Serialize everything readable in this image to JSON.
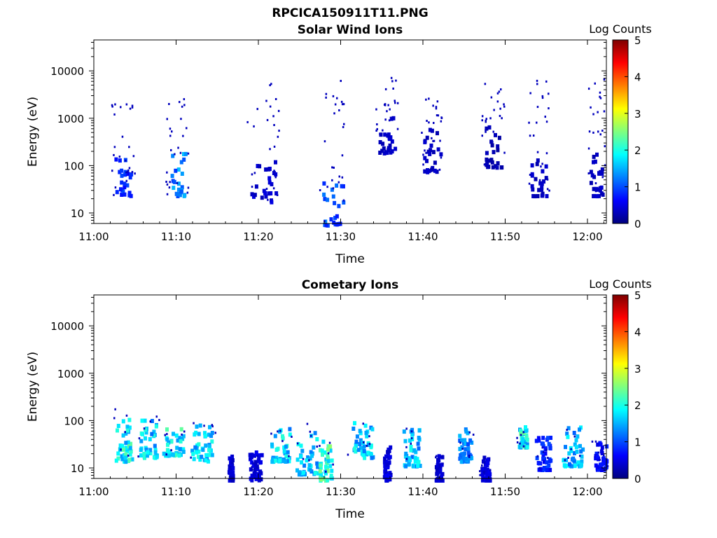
{
  "figure": {
    "main_title": "RPCICA150911T11.PNG"
  },
  "colorbar_colors": [
    "#00007f",
    "#0000ff",
    "#007fff",
    "#00ffff",
    "#7fff7f",
    "#ffff00",
    "#ff7f00",
    "#ff0000",
    "#7f0000"
  ],
  "chart_data": [
    {
      "type": "heatmap",
      "title": "Solar Wind Ions",
      "xlabel": "Time",
      "ylabel": "Energy (eV)",
      "x_range_minutes": [
        0,
        62.3
      ],
      "x_tick_values": [
        0,
        10,
        20,
        30,
        40,
        50,
        60
      ],
      "x_tick_labels": [
        "11:00",
        "11:10",
        "11:20",
        "11:30",
        "11:40",
        "11:50",
        "12:00"
      ],
      "y_scale": "log",
      "y_range": [
        6,
        45000
      ],
      "y_tick_values": [
        10,
        100,
        1000,
        10000
      ],
      "y_tick_labels": [
        "10",
        "100",
        "1000",
        "10000"
      ],
      "colorbar": {
        "label": "Log Counts",
        "range": [
          0,
          5
        ],
        "tick_labels": [
          "0",
          "1",
          "2",
          "3",
          "4",
          "5"
        ]
      },
      "bursts": [
        {
          "t": 3.5,
          "hi": 3000,
          "lo": 25,
          "w": 2.0,
          "level": 1.0
        },
        {
          "t": 10.0,
          "hi": 3000,
          "lo": 25,
          "w": 2.0,
          "level": 1.6
        },
        {
          "t": 20.5,
          "hi": 10000,
          "lo": 18,
          "w": 3.0,
          "level": 0.5
        },
        {
          "t": 29.0,
          "hi": 8000,
          "lo": 6,
          "w": 2.5,
          "level": 1.3
        },
        {
          "t": 35.5,
          "hi": 8000,
          "lo": 200,
          "w": 2.0,
          "level": 0.4
        },
        {
          "t": 41.0,
          "hi": 3000,
          "lo": 80,
          "w": 2.0,
          "level": 0.4
        },
        {
          "t": 48.5,
          "hi": 8000,
          "lo": 100,
          "w": 2.0,
          "level": 0.3
        },
        {
          "t": 54.0,
          "hi": 8000,
          "lo": 25,
          "w": 2.0,
          "level": 0.4
        },
        {
          "t": 61.0,
          "hi": 8000,
          "lo": 25,
          "w": 1.5,
          "level": 0.4
        }
      ]
    },
    {
      "type": "heatmap",
      "title": "Cometary Ions",
      "xlabel": "Time",
      "ylabel": "Energy (eV)",
      "x_range_minutes": [
        0,
        62.3
      ],
      "x_tick_values": [
        0,
        10,
        20,
        30,
        40,
        50,
        60
      ],
      "x_tick_labels": [
        "11:00",
        "11:10",
        "11:20",
        "11:30",
        "11:40",
        "11:50",
        "12:00"
      ],
      "y_scale": "log",
      "y_range": [
        6,
        45000
      ],
      "y_tick_values": [
        10,
        100,
        1000,
        10000
      ],
      "y_tick_labels": [
        "10",
        "100",
        "1000",
        "10000"
      ],
      "colorbar": {
        "label": "Log Counts",
        "range": [
          0,
          5
        ],
        "tick_labels": [
          "0",
          "1",
          "2",
          "3",
          "4",
          "5"
        ]
      },
      "bursts": [
        {
          "t": 3.5,
          "hi": 200,
          "lo": 15,
          "w": 2.0,
          "level": 2.4
        },
        {
          "t": 6.5,
          "hi": 150,
          "lo": 18,
          "w": 2.0,
          "level": 2.1
        },
        {
          "t": 9.5,
          "hi": 80,
          "lo": 20,
          "w": 2.5,
          "level": 2.4
        },
        {
          "t": 13.0,
          "hi": 100,
          "lo": 15,
          "w": 2.5,
          "level": 2.1
        },
        {
          "t": 16.5,
          "hi": 20,
          "lo": 6,
          "w": 0.5,
          "level": 0.5
        },
        {
          "t": 19.5,
          "hi": 25,
          "lo": 6,
          "w": 1.5,
          "level": 0.6
        },
        {
          "t": 22.5,
          "hi": 80,
          "lo": 15,
          "w": 2.5,
          "level": 2.1
        },
        {
          "t": 26.0,
          "hi": 100,
          "lo": 8,
          "w": 3.0,
          "level": 2.0
        },
        {
          "t": 28.0,
          "hi": 40,
          "lo": 6,
          "w": 1.5,
          "level": 2.6
        },
        {
          "t": 32.5,
          "hi": 100,
          "lo": 18,
          "w": 2.5,
          "level": 2.1
        },
        {
          "t": 35.5,
          "hi": 30,
          "lo": 6,
          "w": 0.8,
          "level": 0.6
        },
        {
          "t": 38.5,
          "hi": 80,
          "lo": 12,
          "w": 2.0,
          "level": 2.0
        },
        {
          "t": 41.8,
          "hi": 20,
          "lo": 6,
          "w": 0.8,
          "level": 0.5
        },
        {
          "t": 45.0,
          "hi": 80,
          "lo": 15,
          "w": 1.5,
          "level": 1.6
        },
        {
          "t": 47.5,
          "hi": 20,
          "lo": 6,
          "w": 1.0,
          "level": 0.6
        },
        {
          "t": 52.0,
          "hi": 80,
          "lo": 30,
          "w": 1.0,
          "level": 2.4
        },
        {
          "t": 54.5,
          "hi": 50,
          "lo": 10,
          "w": 2.0,
          "level": 1.0
        },
        {
          "t": 58.0,
          "hi": 80,
          "lo": 12,
          "w": 2.5,
          "level": 1.9
        },
        {
          "t": 61.5,
          "hi": 40,
          "lo": 10,
          "w": 1.5,
          "level": 0.8
        }
      ]
    }
  ]
}
